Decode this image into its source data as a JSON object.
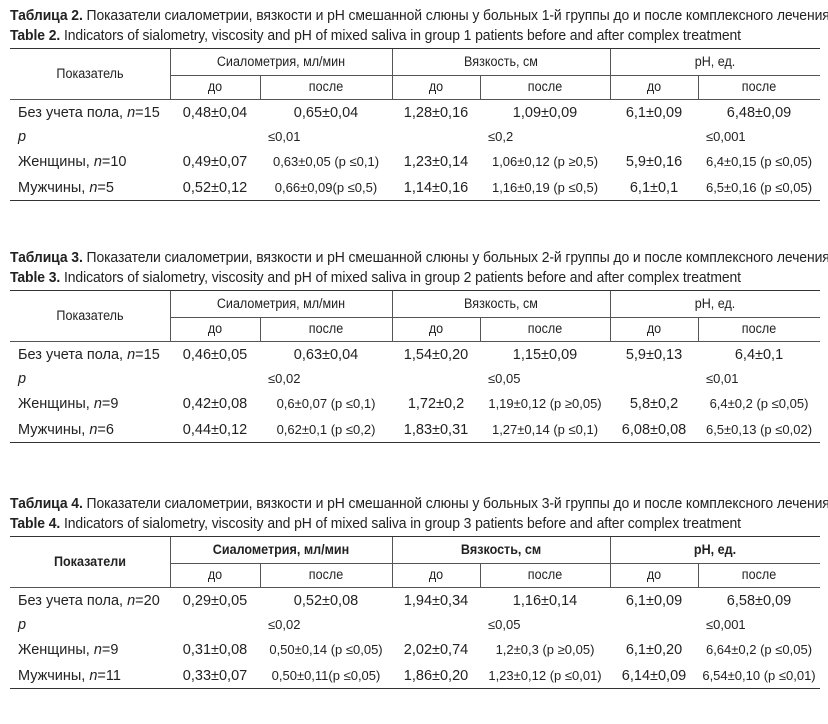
{
  "tables": [
    {
      "caption_bold_ru": "Таблица 2.",
      "caption_ru": "Показатели сиалометрии, вязкости и pH смешанной слюны у больных 1-й группы до и после комплексного лечения",
      "caption_bold_en": "Table 2.",
      "caption_en": "Indicators of sialometry, viscosity and pH of mixed saliva in group 1 patients before and after complex treatment",
      "header": {
        "indicator": "Показатель",
        "sialometry": "Сиалометрия, мл/мин",
        "viscosity": "Вязкость, см",
        "ph": "pH, ед.",
        "before": "до",
        "after": "после"
      },
      "rows": [
        {
          "label_pre": "Без учета пола, ",
          "label_it": "n",
          "label_post": "=15",
          "s_before": "0,48±0,04",
          "s_after": "0,65±0,04",
          "v_before": "1,28±0,16",
          "v_after": "1,09±0,09",
          "p_before": "6,1±0,09",
          "p_after": "6,48±0,09"
        },
        {
          "p_label": "p",
          "p_s": "≤0,01",
          "p_v": "≤0,2",
          "p_p": "≤0,001"
        },
        {
          "label_pre": "Женщины, ",
          "label_it": "n",
          "label_post": "=10",
          "s_before": "0,49±0,07",
          "s_after": "0,63±0,05 (p ≤0,1)",
          "v_before": "1,23±0,14",
          "v_after": "1,06±0,12 (p ≥0,5)",
          "p_before": "5,9±0,16",
          "p_after": "6,4±0,15 (p ≤0,05)"
        },
        {
          "label_pre": "Мужчины, ",
          "label_it": "n",
          "label_post": "=5",
          "s_before": "0,52±0,12",
          "s_after": "0,66±0,09(p ≤0,5)",
          "v_before": "1,14±0,16",
          "v_after": "1,16±0,19 (p ≤0,5)",
          "p_before": "6,1±0,1",
          "p_after": "6,5±0,16 (p ≤0,05)"
        }
      ]
    },
    {
      "caption_bold_ru": "Таблица 3.",
      "caption_ru": "Показатели сиалометрии, вязкости и pH смешанной слюны у больных 2-й группы до и после комплексного лечения",
      "caption_bold_en": "Table 3.",
      "caption_en": "Indicators of sialometry, viscosity and pH of mixed saliva in group 2 patients before and after complex treatment",
      "header": {
        "indicator": "Показатель",
        "sialometry": "Сиалометрия, мл/мин",
        "viscosity": "Вязкость, см",
        "ph": "pH, ед.",
        "before": "до",
        "after": "после"
      },
      "rows": [
        {
          "label_pre": "Без учета пола, ",
          "label_it": "n",
          "label_post": "=15",
          "s_before": "0,46±0,05",
          "s_after": "0,63±0,04",
          "v_before": "1,54±0,20",
          "v_after": "1,15±0,09",
          "p_before": "5,9±0,13",
          "p_after": "6,4±0,1"
        },
        {
          "p_label": "p",
          "p_s": "≤0,02",
          "p_v": "≤0,05",
          "p_p": "≤0,01"
        },
        {
          "label_pre": "Женщины, ",
          "label_it": "n",
          "label_post": "=9",
          "s_before": "0,42±0,08",
          "s_after": "0,6±0,07 (p ≤0,1)",
          "v_before": "1,72±0,2",
          "v_after": "1,19±0,12 (p ≥0,05)",
          "p_before": "5,8±0,2",
          "p_after": "6,4±0,2 (p ≤0,05)"
        },
        {
          "label_pre": "Мужчины, ",
          "label_it": "n",
          "label_post": "=6",
          "s_before": "0,44±0,12",
          "s_after": "0,62±0,1 (p ≤0,2)",
          "v_before": "1,83±0,31",
          "v_after": "1,27±0,14 (p ≤0,1)",
          "p_before": "6,08±0,08",
          "p_after": "6,5±0,13 (p ≤0,02)"
        }
      ]
    },
    {
      "caption_bold_ru": "Таблица 4.",
      "caption_ru": "Показатели сиалометрии, вязкости и pH смешанной слюны у больных 3-й группы до и после комплексного лечения",
      "caption_bold_en": "Table 4.",
      "caption_en": "Indicators of sialometry, viscosity and pH of mixed saliva in group 3 patients before and after complex treatment",
      "header": {
        "indicator": "Показатели",
        "sialometry": "Сиалометрия, мл/мин",
        "viscosity": "Вязкость, см",
        "ph": "pH, ед.",
        "before": "до",
        "after": "после"
      },
      "rows": [
        {
          "label_pre": "Без учета пола, ",
          "label_it": "n",
          "label_post": "=20",
          "s_before": "0,29±0,05",
          "s_after": "0,52±0,08",
          "v_before": "1,94±0,34",
          "v_after": "1,16±0,14",
          "p_before": "6,1±0,09",
          "p_after": "6,58±0,09"
        },
        {
          "p_label": "p",
          "p_s": "≤0,02",
          "p_v": "≤0,05",
          "p_p": "≤0,001"
        },
        {
          "label_pre": "Женщины, ",
          "label_it": "n",
          "label_post": "=9",
          "s_before": "0,31±0,08",
          "s_after": "0,50±0,14 (p ≤0,05)",
          "v_before": "2,02±0,74",
          "v_after": "1,2±0,3 (p ≥0,05)",
          "p_before": "6,1±0,20",
          "p_after": "6,64±0,2 (p ≤0,05)"
        },
        {
          "label_pre": "Мужчины, ",
          "label_it": "n",
          "label_post": "=11",
          "s_before": "0,33±0,07",
          "s_after": "0,50±0,11(p ≤0,05)",
          "v_before": "1,86±0,20",
          "v_after": "1,23±0,12 (p ≤0,01)",
          "p_before": "6,14±0,09",
          "p_after": "6,54±0,10 (p ≤0,01)"
        }
      ]
    }
  ]
}
